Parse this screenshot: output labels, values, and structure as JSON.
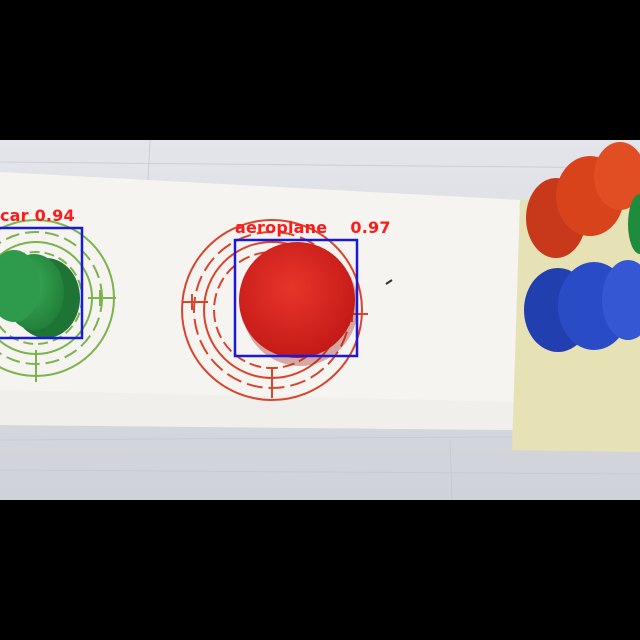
{
  "detections": [
    {
      "label": "car",
      "score": "0.94",
      "box_color": "#1a1ad6",
      "text_color": "#ff1a1a"
    },
    {
      "label": "aeroplane",
      "score": "0.97",
      "box_color": "#1a1ad6",
      "text_color": "#ff1a1a"
    }
  ],
  "scene": {
    "background_color": "#dfe1e6",
    "paper_color": "#f4f3f0",
    "mat_color": "#e8e2b8",
    "green_target_color": "#7ab24a",
    "red_target_color": "#d9402a",
    "green_block_color": "#2f9a4a",
    "red_block_color": "#d92520",
    "orange_block_color": "#d8431c",
    "blue_block_color": "#2a4bc6"
  }
}
